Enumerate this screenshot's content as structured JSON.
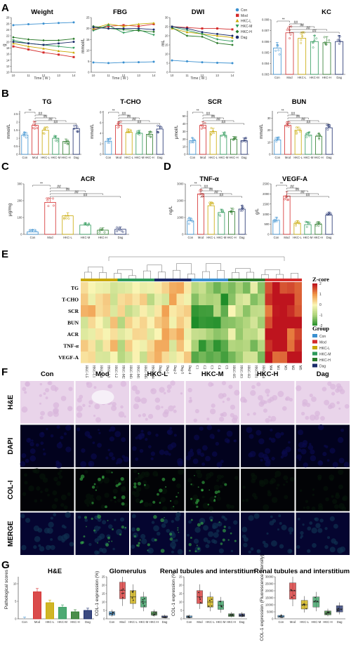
{
  "panel_letters": [
    "A",
    "B",
    "C",
    "D",
    "E",
    "F",
    "G"
  ],
  "groups": [
    "Con",
    "Mod",
    "HKC-L",
    "HKC-M",
    "HKC-H",
    "Dag"
  ],
  "group_colors": {
    "Con": "#3a90d0",
    "Mod": "#d42b2b",
    "HKC-L": "#c8a800",
    "HKC-M": "#2e9a5a",
    "HKC-H": "#2a7a2a",
    "Dag": "#1a2a6a"
  },
  "panel_a": {
    "lines": [
      {
        "title": "Weight",
        "ylabel": "g",
        "xlabel": "Time ( W )",
        "xticks": [
          "10",
          "11",
          "12",
          "13",
          "14"
        ],
        "yticks": [
          "10",
          "12",
          "14",
          "16",
          "18",
          "20",
          "22",
          "24",
          "26",
          "28"
        ]
      },
      {
        "title": "FBG",
        "ylabel": "mmol/L",
        "xlabel": "Time ( W )",
        "xticks": [
          "10",
          "11",
          "12",
          "13",
          "14"
        ],
        "yticks": [
          "0",
          "5",
          "10",
          "15",
          "20",
          "25"
        ]
      },
      {
        "title": "DWI",
        "ylabel": "mL",
        "xlabel": "Time ( W )",
        "xticks": [
          "10",
          "11",
          "12",
          "13",
          "14"
        ],
        "yticks": [
          "0",
          "5",
          "10",
          "15",
          "20",
          "25",
          "30"
        ]
      }
    ],
    "legend": [
      "Con",
      "Mod",
      "HKC-L",
      "HKC-M",
      "HKC-H",
      "Dag"
    ],
    "kc": {
      "title": "KC",
      "yticks": [
        "0.003",
        "0.004",
        "0.005",
        "0.006",
        "0.007",
        "0.008"
      ]
    }
  },
  "panel_b": [
    {
      "title": "TG",
      "ylabel": "mmol/L"
    },
    {
      "title": "T-CHO",
      "ylabel": "mmol/L"
    },
    {
      "title": "SCR",
      "ylabel": "μmol/L"
    },
    {
      "title": "BUN",
      "ylabel": "mmol/L"
    }
  ],
  "panel_c": {
    "title": "ACR",
    "ylabel": "μg/mg"
  },
  "panel_d": [
    {
      "title": "TNF-α",
      "ylabel": "ng/L"
    },
    {
      "title": "VEGF-A",
      "ylabel": "g/L"
    }
  ],
  "sig_labels": {
    "star": "**",
    "hash": "##",
    "hash1": "#"
  },
  "panel_e": {
    "rows": [
      "TG",
      "T-CHO",
      "SCR",
      "BUN",
      "ACR",
      "TNF-α",
      "VEGF-A"
    ],
    "cols": [
      "HKC-L5",
      "HKC-L1",
      "HKC-L4",
      "HKC-L3",
      "HKC-L2",
      "HKC-M2",
      "HKC-M3",
      "HKC-M1",
      "HKC-M5",
      "HKC-M4",
      "Dag-3",
      "Dag-1",
      "Dag-2",
      "Dag-5",
      "Dag-4",
      "C1",
      "C2",
      "C3",
      "C4",
      "C5",
      "HKC-H5",
      "HKC-H3",
      "HKC-H2",
      "HKC-H1",
      "HKC-H4",
      "M4",
      "M1",
      "M3",
      "M2",
      "M5"
    ],
    "legend_title": "Z-core",
    "legend_ticks": [
      "2",
      "1",
      "0",
      "-1",
      "-2"
    ],
    "group_title": "Group",
    "group_items": [
      "Con",
      "Mod",
      "HKC-L",
      "HKC-M",
      "HKC-H",
      "Dag"
    ]
  },
  "panel_f": {
    "cols": [
      "Con",
      "Mod",
      "HKC-L",
      "HKC-M",
      "HKC-H",
      "Dag"
    ],
    "rows": [
      "H&E",
      "DAPI",
      "COL-I",
      "MERGE"
    ]
  },
  "panel_g": [
    {
      "title": "H&E",
      "ylabel": "Pathological scores"
    },
    {
      "title": "Glomerulus",
      "ylabel": "COL-1 expression (%)"
    },
    {
      "title": "Renal tubules and interstitium",
      "ylabel": "COL-1 expression (%)"
    },
    {
      "title": "Renal tubules and interstitium",
      "ylabel": "COL-1 expression (Fluorescence intensity)"
    }
  ],
  "chart_data": [
    {
      "type": "line",
      "title": "Weight",
      "xlabel": "Time ( W )",
      "ylabel": "g",
      "x": [
        10,
        11,
        12,
        13,
        14
      ],
      "ylim": [
        10,
        28
      ],
      "series": [
        {
          "name": "Con",
          "values": [
            25.5,
            25.8,
            26,
            26.2,
            26.4
          ]
        },
        {
          "name": "Mod",
          "values": [
            18.5,
            17.5,
            16.5,
            15.8,
            15
          ]
        },
        {
          "name": "HKC-L",
          "values": [
            19.5,
            18.5,
            17.8,
            17,
            16.5
          ]
        },
        {
          "name": "HKC-M",
          "values": [
            20.5,
            19.5,
            19,
            18.5,
            18
          ]
        },
        {
          "name": "HKC-H",
          "values": [
            21.5,
            20.8,
            20.5,
            20.5,
            21
          ]
        },
        {
          "name": "Dag",
          "values": [
            20,
            19.5,
            19,
            19.5,
            20
          ]
        }
      ]
    },
    {
      "type": "line",
      "title": "FBG",
      "xlabel": "Time ( W )",
      "ylabel": "mmol/L",
      "x": [
        10,
        11,
        12,
        13,
        14
      ],
      "ylim": [
        0,
        25
      ],
      "series": [
        {
          "name": "Con",
          "values": [
            4.5,
            4.2,
            4.5,
            4.6,
            4.8
          ]
        },
        {
          "name": "Mod",
          "values": [
            19.5,
            21,
            21.5,
            21,
            22
          ]
        },
        {
          "name": "HKC-L",
          "values": [
            20,
            22,
            21,
            22,
            22.5
          ]
        },
        {
          "name": "HKC-M",
          "values": [
            19,
            21.5,
            18,
            19.5,
            17
          ]
        },
        {
          "name": "HKC-H",
          "values": [
            21,
            20,
            19.5,
            19,
            18.5
          ]
        },
        {
          "name": "Dag",
          "values": [
            20.5,
            20,
            20,
            20,
            19.5
          ]
        }
      ]
    },
    {
      "type": "line",
      "title": "DWI",
      "xlabel": "Time ( W )",
      "ylabel": "mL",
      "x": [
        10,
        11,
        12,
        13,
        14
      ],
      "ylim": [
        0,
        30
      ],
      "series": [
        {
          "name": "Con",
          "values": [
            6.5,
            6,
            5.5,
            5.2,
            5
          ]
        },
        {
          "name": "Mod",
          "values": [
            25,
            24.5,
            24,
            24,
            23.5
          ]
        },
        {
          "name": "HKC-L",
          "values": [
            24,
            22,
            21,
            20,
            19
          ]
        },
        {
          "name": "HKC-M",
          "values": [
            25,
            23,
            21,
            18,
            17
          ]
        },
        {
          "name": "HKC-H",
          "values": [
            24.5,
            20,
            19.5,
            16,
            15
          ]
        },
        {
          "name": "Dag",
          "values": [
            25,
            24,
            22,
            21,
            20
          ]
        }
      ]
    },
    {
      "type": "bar",
      "title": "KC",
      "categories": [
        "Con",
        "Mod",
        "HKC-L",
        "HKC-M",
        "HKC-H",
        "Dag"
      ],
      "values": [
        0.0054,
        0.0068,
        0.0063,
        0.006,
        0.0059,
        0.006
      ],
      "ylim": [
        0.003,
        0.008
      ]
    },
    {
      "type": "bar",
      "title": "TG",
      "ylabel": "mmol/L",
      "categories": [
        "Con",
        "Mod",
        "HKC-L",
        "HKC-M",
        "HKC-H",
        "Dag"
      ],
      "values": [
        1.2,
        1.8,
        1.5,
        1.0,
        0.8,
        1.6
      ]
    },
    {
      "type": "bar",
      "title": "T-CHO",
      "ylabel": "mmol/L",
      "categories": [
        "Con",
        "Mod",
        "HKC-L",
        "HKC-M",
        "HKC-H",
        "Dag"
      ],
      "values": [
        2.5,
        5.5,
        4.2,
        4.0,
        3.8,
        4.8
      ]
    },
    {
      "type": "bar",
      "title": "SCR",
      "ylabel": "μmol/L",
      "categories": [
        "Con",
        "Mod",
        "HKC-L",
        "HKC-M",
        "HKC-H",
        "Dag"
      ],
      "values": [
        18,
        38,
        30,
        25,
        20,
        18
      ]
    },
    {
      "type": "bar",
      "title": "BUN",
      "ylabel": "mmol/L",
      "categories": [
        "Con",
        "Mod",
        "HKC-L",
        "HKC-M",
        "HKC-H",
        "Dag"
      ],
      "values": [
        12,
        24,
        20,
        16,
        15,
        22
      ]
    },
    {
      "type": "bar",
      "title": "ACR",
      "ylabel": "μg/mg",
      "categories": [
        "Con",
        "Mod",
        "HKC-L",
        "HKC-M",
        "HKC-H",
        "Dag"
      ],
      "values": [
        15,
        190,
        110,
        55,
        25,
        30
      ],
      "ylim": [
        0,
        300
      ]
    },
    {
      "type": "bar",
      "title": "TNF-α",
      "ylabel": "ng/L",
      "categories": [
        "Con",
        "Mod",
        "HKC-L",
        "HKC-M",
        "HKC-H",
        "Dag"
      ],
      "values": [
        800,
        2400,
        1700,
        1300,
        1350,
        1500
      ],
      "ylim": [
        0,
        3000
      ]
    },
    {
      "type": "bar",
      "title": "VEGF-A",
      "ylabel": "g/L",
      "categories": [
        "Con",
        "Mod",
        "HKC-L",
        "HKC-M",
        "HKC-H",
        "Dag"
      ],
      "values": [
        700,
        1900,
        550,
        480,
        500,
        950
      ],
      "ylim": [
        0,
        2500
      ]
    },
    {
      "type": "bar",
      "title": "H&E",
      "ylabel": "Pathological scores",
      "categories": [
        "Con",
        "Mod",
        "HKC-L",
        "HKC-M",
        "HKC-H",
        "Dag"
      ],
      "values": [
        0,
        7.7,
        4.6,
        3.3,
        2,
        2.4
      ],
      "ylim": [
        0,
        12
      ]
    },
    {
      "type": "bar",
      "title": "Glomerulus",
      "ylabel": "COL-1 expression (%)",
      "categories": [
        "Con",
        "Mod",
        "HKC-L",
        "HKC-M",
        "HKC-H",
        "Dag"
      ],
      "values": [
        3,
        17,
        13,
        10,
        3,
        1
      ],
      "ylim": [
        0,
        25
      ]
    },
    {
      "type": "bar",
      "title": "Renal tubules and interstitium",
      "ylabel": "COL-1 expression (%)",
      "categories": [
        "Con",
        "Mod",
        "HKC-L",
        "HKC-M",
        "HKC-H",
        "Dag"
      ],
      "values": [
        1,
        13,
        10,
        8,
        2,
        2
      ],
      "ylim": [
        0,
        25
      ]
    },
    {
      "type": "bar",
      "title": "Renal tubules and interstitium",
      "ylabel": "COL-1 expression (Fluorescence intensity)",
      "categories": [
        "Con",
        "Mod",
        "HKC-L",
        "HKC-M",
        "HKC-H",
        "Dag"
      ],
      "values": [
        1500,
        20000,
        10000,
        12000,
        4000,
        7000
      ],
      "ylim": [
        0,
        30000
      ]
    }
  ]
}
